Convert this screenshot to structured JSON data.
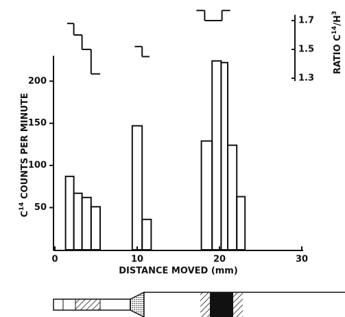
{
  "chart_data": {
    "type": "histogram",
    "x_label": "DISTANCE MOVED (mm)",
    "y_label": {
      "base": "C",
      "sup": "14",
      "rest": " COUNTS PER MINUTE"
    },
    "y2_label": {
      "base": "RATIO C",
      "sup": "14",
      "mid": "/H",
      "sup2": "3"
    },
    "xlim": [
      0,
      30
    ],
    "xticks": [
      0,
      10,
      20,
      30
    ],
    "ylim": [
      0,
      230
    ],
    "yticks": [
      50,
      100,
      150,
      200
    ],
    "y2lim": [
      1.28,
      1.74
    ],
    "y2ticks": [
      1.3,
      1.5,
      1.7
    ],
    "color": "#111111",
    "series": [
      {
        "bins": [
          1.3,
          2.3,
          3.3,
          4.4,
          5.5
        ],
        "values": [
          87,
          67,
          62,
          51
        ]
      },
      {
        "bins": [
          9.4,
          10.6,
          11.7
        ],
        "values": [
          147,
          36
        ]
      },
      {
        "bins": [
          17.8,
          19.1,
          20.2,
          21.0,
          22.1,
          23.1
        ],
        "values": [
          129,
          224,
          222,
          124,
          63
        ]
      },
      {
        "axis": "y2",
        "bins": [
          1.5,
          2.3,
          3.3,
          4.4,
          5.5
        ],
        "values": [
          1.68,
          1.6,
          1.5,
          1.33
        ]
      },
      {
        "axis": "y2",
        "bins": [
          9.7,
          10.6,
          11.5
        ],
        "values": [
          1.52,
          1.45
        ]
      },
      {
        "axis": "y2",
        "bins": [
          17.2,
          18.2,
          20.3,
          21.3
        ],
        "values": [
          1.77,
          1.7,
          1.77
        ]
      }
    ]
  }
}
